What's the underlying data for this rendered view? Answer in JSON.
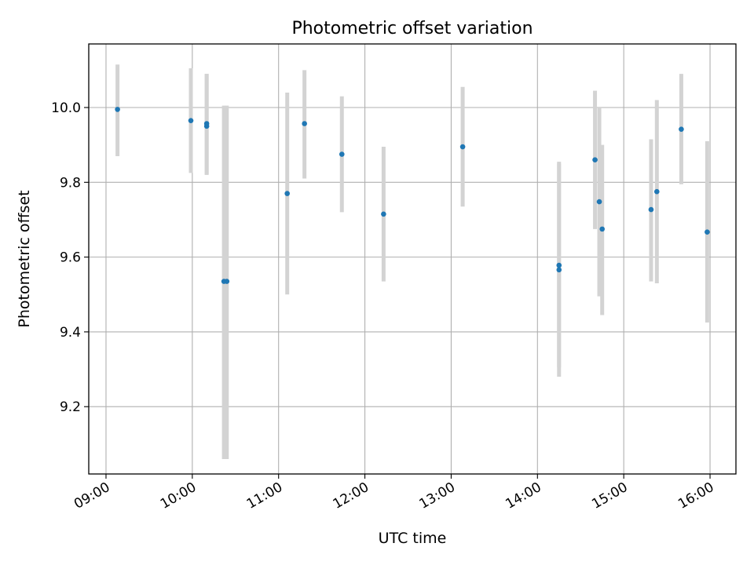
{
  "chart_data": {
    "type": "scatter",
    "title": "Photometric offset variation",
    "xlabel": "UTC time",
    "ylabel": "Photometric offset",
    "x_ticks": [
      "09:00",
      "10:00",
      "11:00",
      "12:00",
      "13:00",
      "14:00",
      "15:00",
      "16:00"
    ],
    "y_ticks": [
      "9.2",
      "9.4",
      "9.6",
      "9.8",
      "10.0"
    ],
    "xlim": [
      "08:48",
      "16:18"
    ],
    "ylim": [
      9.02,
      10.17
    ],
    "grid": true,
    "colors": {
      "points": "#1f77b4",
      "errorbars": "#d3d3d3",
      "grid": "#b0b0b0"
    },
    "points": [
      {
        "x": "09:08",
        "y": 9.995,
        "err_low": 9.87,
        "err_high": 10.115
      },
      {
        "x": "09:59",
        "y": 9.965,
        "err_low": 9.825,
        "err_high": 10.105
      },
      {
        "x": "10:10",
        "y": 9.957,
        "err_low": 9.82,
        "err_high": 10.09
      },
      {
        "x": "10:10",
        "y": 9.95,
        "err_low": 9.82,
        "err_high": 10.09
      },
      {
        "x": "10:22",
        "y": 9.535,
        "err_low": 9.06,
        "err_high": 10.005
      },
      {
        "x": "10:24",
        "y": 9.535,
        "err_low": 9.06,
        "err_high": 10.005
      },
      {
        "x": "11:06",
        "y": 9.77,
        "err_low": 9.5,
        "err_high": 10.04
      },
      {
        "x": "11:18",
        "y": 9.957,
        "err_low": 9.81,
        "err_high": 10.1
      },
      {
        "x": "11:44",
        "y": 9.875,
        "err_low": 9.72,
        "err_high": 10.03
      },
      {
        "x": "12:13",
        "y": 9.715,
        "err_low": 9.535,
        "err_high": 9.895
      },
      {
        "x": "13:08",
        "y": 9.895,
        "err_low": 9.735,
        "err_high": 10.055
      },
      {
        "x": "14:15",
        "y": 9.578,
        "err_low": 9.305,
        "err_high": 9.855
      },
      {
        "x": "14:15",
        "y": 9.566,
        "err_low": 9.28,
        "err_high": 9.85
      },
      {
        "x": "14:40",
        "y": 9.86,
        "err_low": 9.675,
        "err_high": 10.045
      },
      {
        "x": "14:43",
        "y": 9.748,
        "err_low": 9.495,
        "err_high": 10.0
      },
      {
        "x": "14:45",
        "y": 9.675,
        "err_low": 9.445,
        "err_high": 9.9
      },
      {
        "x": "15:19",
        "y": 9.727,
        "err_low": 9.535,
        "err_high": 9.915
      },
      {
        "x": "15:23",
        "y": 9.775,
        "err_low": 9.53,
        "err_high": 10.02
      },
      {
        "x": "15:40",
        "y": 9.942,
        "err_low": 9.795,
        "err_high": 10.09
      },
      {
        "x": "15:58",
        "y": 9.667,
        "err_low": 9.425,
        "err_high": 9.91
      }
    ]
  }
}
